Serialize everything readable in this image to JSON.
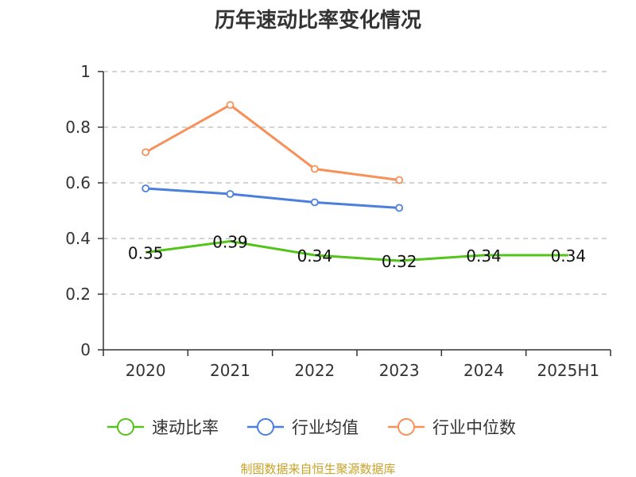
{
  "chart_data": {
    "type": "line",
    "title": "历年速动比率变化情况",
    "categories": [
      "2020",
      "2021",
      "2022",
      "2023",
      "2024",
      "2025H1"
    ],
    "y_ticks": [
      "0",
      "0.2",
      "0.4",
      "0.6",
      "0.8",
      "1"
    ],
    "ylim": [
      0,
      1
    ],
    "grid": true,
    "legend_position": "bottom",
    "series": [
      {
        "name": "速动比率",
        "color": "#52c41a",
        "values": [
          0.35,
          0.39,
          0.34,
          0.32,
          0.34,
          0.34
        ],
        "labels": [
          "0.35",
          "0.39",
          "0.34",
          "0.32",
          "0.34",
          "0.34"
        ],
        "show_markers": false,
        "show_labels": true
      },
      {
        "name": "行业均值",
        "color": "#4a7fdc",
        "values": [
          0.58,
          0.56,
          0.53,
          0.51,
          null,
          null
        ],
        "show_markers": true,
        "show_labels": false
      },
      {
        "name": "行业中位数",
        "color": "#f79059",
        "values": [
          0.71,
          0.88,
          0.65,
          0.61,
          null,
          null
        ],
        "show_markers": true,
        "show_labels": false
      }
    ],
    "source": "制图数据来自恒生聚源数据库",
    "source_color": "#c9a227"
  }
}
